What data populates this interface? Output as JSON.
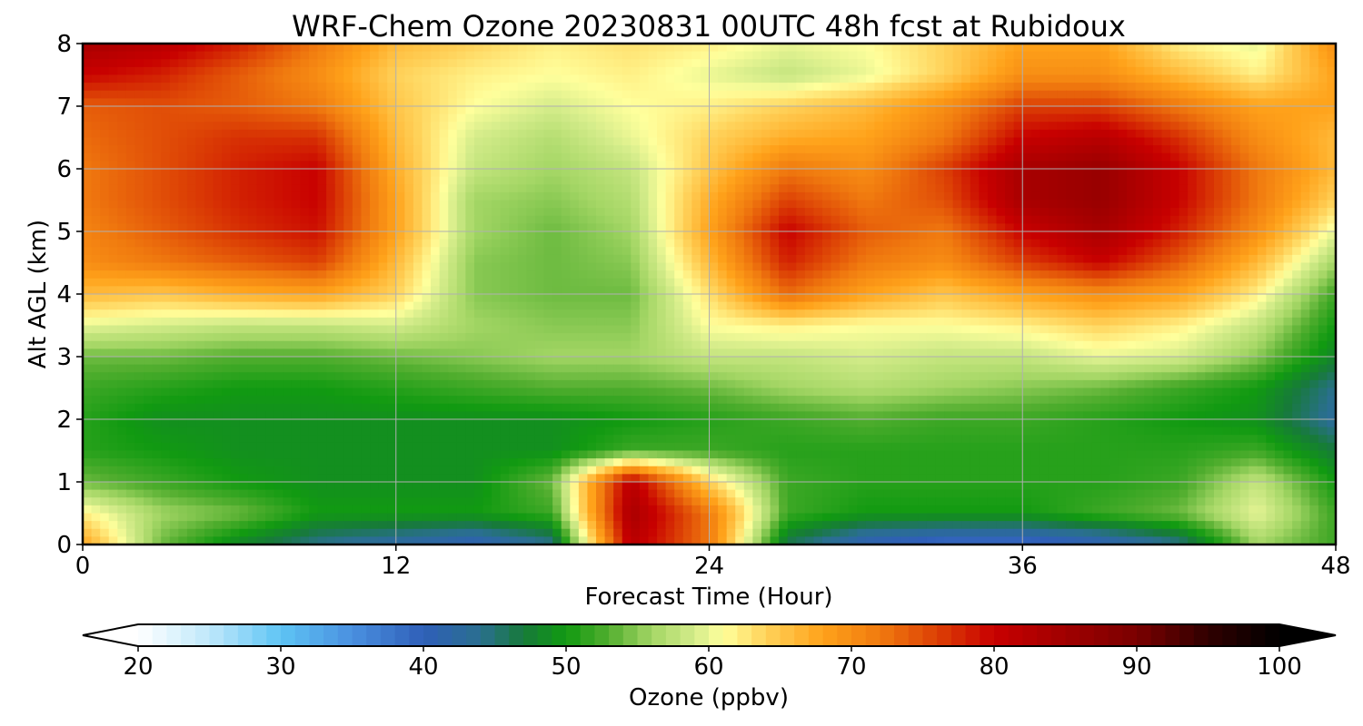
{
  "chart_data": {
    "type": "heatmap",
    "title": "WRF-Chem Ozone  20230831 00UTC 48h fcst at Rubidoux",
    "xlabel": "Forecast Time (Hour)",
    "ylabel": "Alt AGL (km)",
    "xlim": [
      0,
      48
    ],
    "ylim": [
      0,
      8
    ],
    "x_ticks": [
      0,
      12,
      24,
      36,
      48
    ],
    "y_ticks": [
      0,
      1,
      2,
      3,
      4,
      5,
      6,
      7,
      8
    ],
    "grid": true,
    "x_hours": [
      0,
      3,
      6,
      9,
      12,
      15,
      18,
      21,
      24,
      27,
      30,
      33,
      36,
      39,
      42,
      45,
      48
    ],
    "y_km": [
      0,
      0.5,
      1,
      1.5,
      2,
      2.5,
      3,
      3.5,
      4,
      4.5,
      5,
      5.5,
      6,
      6.5,
      7,
      7.5,
      8
    ],
    "z_ppbv": [
      [
        68,
        54,
        48,
        44,
        42,
        40,
        44,
        82,
        72,
        46,
        40,
        38,
        38,
        40,
        44,
        56,
        52
      ],
      [
        62,
        56,
        54,
        50,
        50,
        50,
        52,
        84,
        72,
        52,
        50,
        50,
        50,
        52,
        54,
        60,
        52
      ],
      [
        54,
        52,
        50,
        49,
        49,
        49,
        54,
        82,
        64,
        52,
        51,
        51,
        51,
        51,
        52,
        58,
        50
      ],
      [
        51,
        50,
        49,
        49,
        49,
        49,
        49,
        52,
        52,
        51,
        51,
        51,
        51,
        51,
        51,
        52,
        47
      ],
      [
        51,
        49,
        49,
        49,
        49,
        49,
        49,
        50,
        51,
        52,
        53,
        52,
        52,
        51,
        50,
        49,
        43
      ],
      [
        52,
        51,
        50,
        50,
        51,
        52,
        53,
        53,
        54,
        56,
        57,
        56,
        55,
        54,
        52,
        50,
        44
      ],
      [
        54,
        54,
        53,
        53,
        54,
        55,
        56,
        56,
        58,
        58,
        59,
        58,
        58,
        60,
        59,
        55,
        48
      ],
      [
        60,
        59,
        58,
        58,
        59,
        56,
        55,
        55,
        61,
        62,
        61,
        61,
        62,
        64,
        62,
        58,
        50
      ],
      [
        66,
        65,
        67,
        68,
        64,
        55,
        54,
        54,
        63,
        73,
        68,
        65,
        68,
        70,
        68,
        62,
        52
      ],
      [
        70,
        72,
        74,
        76,
        66,
        55,
        54,
        55,
        66,
        78,
        72,
        70,
        76,
        80,
        74,
        66,
        56
      ],
      [
        71,
        74,
        77,
        79,
        68,
        56,
        54,
        56,
        68,
        80,
        74,
        72,
        80,
        84,
        78,
        70,
        60
      ],
      [
        72,
        75,
        78,
        80,
        68,
        56,
        55,
        57,
        67,
        76,
        72,
        75,
        84,
        86,
        80,
        72,
        64
      ],
      [
        72,
        75,
        78,
        80,
        67,
        58,
        56,
        58,
        65,
        72,
        70,
        76,
        84,
        86,
        80,
        72,
        66
      ],
      [
        73,
        75,
        77,
        77,
        66,
        59,
        57,
        60,
        64,
        67,
        68,
        72,
        80,
        82,
        77,
        70,
        66
      ],
      [
        74,
        75,
        74,
        72,
        65,
        61,
        59,
        61,
        62,
        64,
        66,
        70,
        76,
        76,
        72,
        68,
        68
      ],
      [
        80,
        78,
        74,
        70,
        64,
        62,
        61,
        62,
        60,
        58,
        60,
        64,
        70,
        70,
        66,
        62,
        68
      ],
      [
        84,
        82,
        78,
        72,
        66,
        64,
        62,
        63,
        62,
        60,
        61,
        64,
        68,
        68,
        62,
        60,
        70
      ]
    ]
  },
  "colorbar": {
    "label": "Ozone  (ppbv)",
    "min": 20,
    "max": 100,
    "ticks": [
      20,
      30,
      40,
      50,
      60,
      70,
      80,
      90,
      100
    ],
    "colormap": [
      [
        20,
        "#ffffff"
      ],
      [
        25,
        "#bfe8fb"
      ],
      [
        30,
        "#5ec4f4"
      ],
      [
        35,
        "#4a90e0"
      ],
      [
        40,
        "#2f5fb8"
      ],
      [
        44,
        "#2a6f8f"
      ],
      [
        47,
        "#177a3a"
      ],
      [
        50,
        "#119a11"
      ],
      [
        53,
        "#52ae2f"
      ],
      [
        56,
        "#a4d665"
      ],
      [
        59,
        "#d4ec8a"
      ],
      [
        61,
        "#ffff9c"
      ],
      [
        64,
        "#ffd25a"
      ],
      [
        68,
        "#ffa21a"
      ],
      [
        72,
        "#f07a0f"
      ],
      [
        76,
        "#dc4005"
      ],
      [
        80,
        "#c80000"
      ],
      [
        85,
        "#a00000"
      ],
      [
        90,
        "#7a0000"
      ],
      [
        95,
        "#300000"
      ],
      [
        100,
        "#000000"
      ]
    ]
  }
}
